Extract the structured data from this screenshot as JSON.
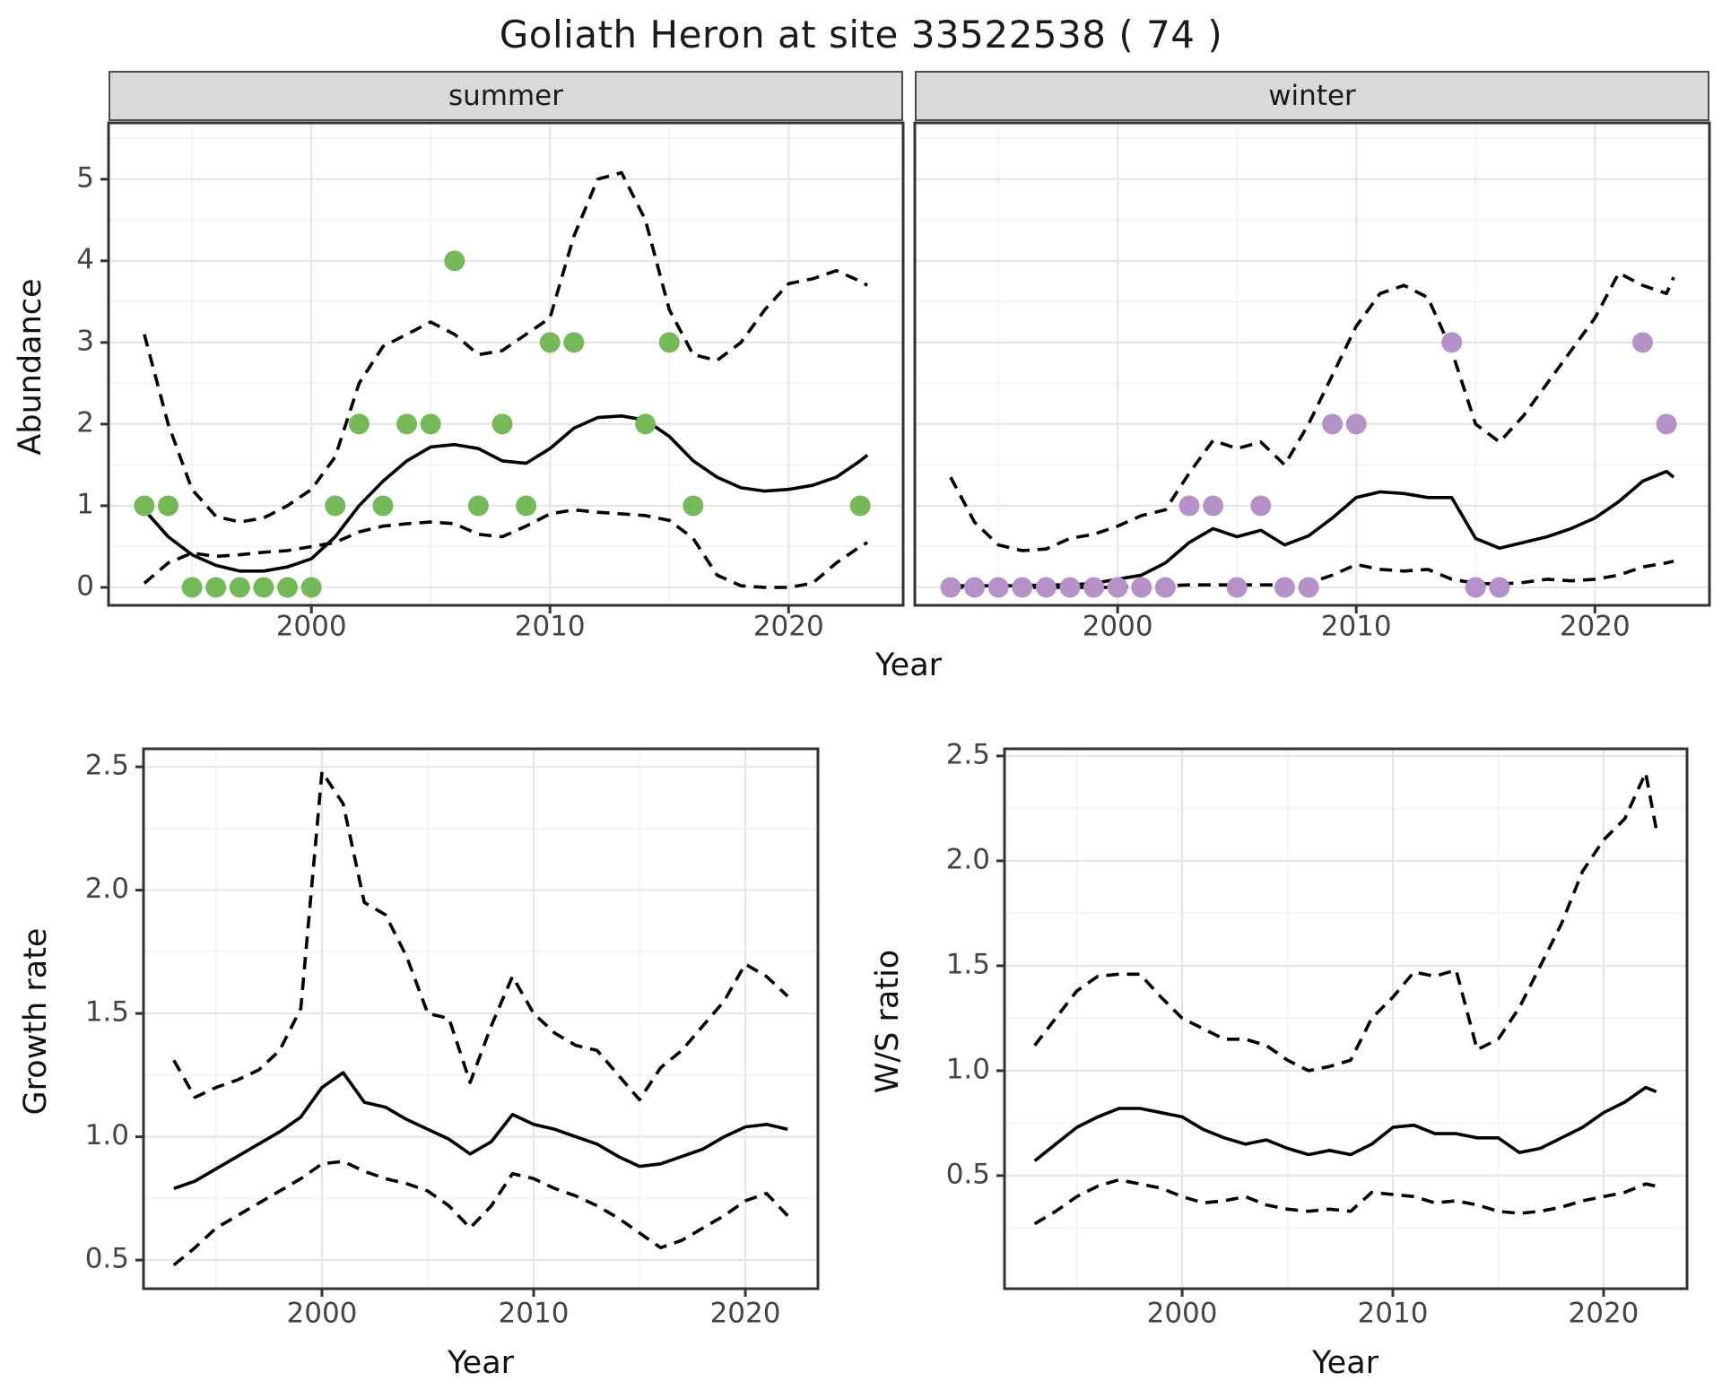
{
  "title": "Goliath Heron at site 33522538 ( 74 )",
  "facets": [
    {
      "label": "summer"
    },
    {
      "label": "winter"
    }
  ],
  "axis_titles": {
    "abundance": "Abundance",
    "year_top": "Year",
    "growth_rate": "Growth rate",
    "year_bottom_left": "Year",
    "ws_ratio": "W/S ratio",
    "year_bottom_right": "Year"
  },
  "colors": {
    "summer_points": "#76b958",
    "winter_points": "#b691c7",
    "fit_line": "#000000",
    "ci_line": "#000000",
    "panel_border": "#333333",
    "strip_bg": "#d9d9d9",
    "grid_major": "#e6e6e6",
    "grid_minor": "#f2f2f2",
    "tick_text": "#444444",
    "background": "#ffffff"
  },
  "chart_data": [
    {
      "type": "scatter",
      "title": "summer",
      "ylabel": "Abundance",
      "xlabel": "Year",
      "xbreaks": [
        2000,
        2010,
        2020
      ],
      "xbreak_labels": [
        "2000",
        "2010",
        "2020"
      ],
      "ybreaks": [
        0,
        1,
        2,
        3,
        4,
        5
      ],
      "ybreak_labels": [
        "0",
        "1",
        "2",
        "3",
        "4",
        "5"
      ],
      "xlim": [
        1991.5,
        2024.8
      ],
      "ylim": [
        -0.22,
        5.69
      ],
      "grid": true,
      "points": [
        [
          1993,
          1
        ],
        [
          1994,
          1
        ],
        [
          1995,
          0
        ],
        [
          1996,
          0
        ],
        [
          1997,
          0
        ],
        [
          1998,
          0
        ],
        [
          1999,
          0
        ],
        [
          2000,
          0
        ],
        [
          2001,
          1
        ],
        [
          2002,
          2
        ],
        [
          2003,
          1
        ],
        [
          2004,
          2
        ],
        [
          2005,
          2
        ],
        [
          2006,
          4
        ],
        [
          2007,
          1
        ],
        [
          2008,
          2
        ],
        [
          2009,
          1
        ],
        [
          2010,
          3
        ],
        [
          2011,
          3
        ],
        [
          2014,
          2
        ],
        [
          2015,
          3
        ],
        [
          2016,
          1
        ],
        [
          2023,
          1
        ]
      ],
      "x": [
        1993,
        1994,
        1995,
        1996,
        1997,
        1998,
        1999,
        2000,
        2001,
        2002,
        2003,
        2004,
        2005,
        2006,
        2007,
        2008,
        2009,
        2010,
        2011,
        2012,
        2013,
        2014,
        2015,
        2016,
        2017,
        2018,
        2019,
        2020,
        2021,
        2022,
        2023,
        2023.3
      ],
      "series": [
        {
          "name": "fit",
          "style": "solid",
          "values": [
            0.95,
            0.62,
            0.4,
            0.27,
            0.2,
            0.2,
            0.25,
            0.35,
            0.62,
            1.0,
            1.3,
            1.55,
            1.72,
            1.75,
            1.7,
            1.55,
            1.52,
            1.7,
            1.95,
            2.08,
            2.1,
            2.05,
            1.85,
            1.55,
            1.35,
            1.22,
            1.18,
            1.2,
            1.25,
            1.35,
            1.55,
            1.62
          ]
        },
        {
          "name": "upper_ci",
          "style": "dashed",
          "values": [
            3.1,
            2.0,
            1.2,
            0.87,
            0.8,
            0.85,
            1.0,
            1.2,
            1.6,
            2.5,
            2.95,
            3.1,
            3.25,
            3.1,
            2.85,
            2.9,
            3.1,
            3.3,
            4.3,
            5.0,
            5.08,
            4.5,
            3.4,
            2.85,
            2.78,
            3.0,
            3.4,
            3.72,
            3.78,
            3.88,
            3.75,
            3.7
          ]
        },
        {
          "name": "lower_ci",
          "style": "dashed",
          "values": [
            0.05,
            0.3,
            0.42,
            0.38,
            0.4,
            0.43,
            0.45,
            0.5,
            0.55,
            0.68,
            0.75,
            0.78,
            0.8,
            0.78,
            0.65,
            0.62,
            0.75,
            0.9,
            0.95,
            0.92,
            0.9,
            0.88,
            0.82,
            0.6,
            0.15,
            0.02,
            0.0,
            0.0,
            0.05,
            0.3,
            0.5,
            0.55
          ]
        }
      ]
    },
    {
      "type": "scatter",
      "title": "winter",
      "ylabel": "Abundance",
      "xlabel": "Year",
      "xbreaks": [
        2000,
        2010,
        2020
      ],
      "xbreak_labels": [
        "2000",
        "2010",
        "2020"
      ],
      "ybreaks": [
        0,
        1,
        2,
        3,
        4,
        5
      ],
      "ybreak_labels": [
        "0",
        "1",
        "2",
        "3",
        "4",
        "5"
      ],
      "xlim": [
        1991.5,
        2024.8
      ],
      "ylim": [
        -0.22,
        5.69
      ],
      "grid": true,
      "points": [
        [
          1993,
          0
        ],
        [
          1994,
          0
        ],
        [
          1995,
          0
        ],
        [
          1996,
          0
        ],
        [
          1997,
          0
        ],
        [
          1998,
          0
        ],
        [
          1999,
          0
        ],
        [
          2000,
          0
        ],
        [
          2001,
          0
        ],
        [
          2002,
          0
        ],
        [
          2003,
          1
        ],
        [
          2004,
          1
        ],
        [
          2005,
          0
        ],
        [
          2006,
          1
        ],
        [
          2007,
          0
        ],
        [
          2008,
          0
        ],
        [
          2009,
          2
        ],
        [
          2010,
          2
        ],
        [
          2014,
          3
        ],
        [
          2015,
          0
        ],
        [
          2016,
          0
        ],
        [
          2022,
          3
        ],
        [
          2023,
          2
        ]
      ],
      "x": [
        1993,
        1994,
        1995,
        1996,
        1997,
        1998,
        1999,
        2000,
        2001,
        2002,
        2003,
        2004,
        2005,
        2006,
        2007,
        2008,
        2009,
        2010,
        2011,
        2012,
        2013,
        2014,
        2015,
        2016,
        2017,
        2018,
        2019,
        2020,
        2021,
        2022,
        2023,
        2023.3
      ],
      "series": [
        {
          "name": "fit",
          "style": "solid",
          "values": [
            0.02,
            0.02,
            0.02,
            0.02,
            0.03,
            0.03,
            0.05,
            0.1,
            0.15,
            0.3,
            0.55,
            0.72,
            0.62,
            0.7,
            0.52,
            0.63,
            0.85,
            1.1,
            1.17,
            1.15,
            1.1,
            1.1,
            0.6,
            0.48,
            0.55,
            0.62,
            0.72,
            0.85,
            1.05,
            1.3,
            1.42,
            1.35
          ]
        },
        {
          "name": "upper_ci",
          "style": "dashed",
          "values": [
            1.35,
            0.8,
            0.52,
            0.45,
            0.47,
            0.6,
            0.65,
            0.75,
            0.88,
            0.95,
            1.4,
            1.8,
            1.7,
            1.78,
            1.5,
            2.0,
            2.6,
            3.2,
            3.6,
            3.7,
            3.55,
            2.9,
            2.0,
            1.78,
            2.1,
            2.5,
            2.9,
            3.3,
            3.85,
            3.7,
            3.6,
            3.8
          ]
        },
        {
          "name": "lower_ci",
          "style": "dashed",
          "values": [
            0.0,
            0.0,
            0.0,
            0.0,
            0.0,
            0.0,
            0.0,
            0.0,
            0.02,
            0.02,
            0.03,
            0.03,
            0.03,
            0.03,
            0.03,
            0.05,
            0.15,
            0.28,
            0.22,
            0.2,
            0.22,
            0.1,
            0.05,
            0.04,
            0.06,
            0.1,
            0.08,
            0.1,
            0.15,
            0.25,
            0.3,
            0.32
          ]
        }
      ]
    },
    {
      "type": "line",
      "title": "Growth rate",
      "ylabel": "Growth rate",
      "xlabel": "Year",
      "xbreaks": [
        2000,
        2010,
        2020
      ],
      "xbreak_labels": [
        "2000",
        "2010",
        "2020"
      ],
      "ybreaks": [
        0.5,
        1.0,
        1.5,
        2.0,
        2.5
      ],
      "ybreak_labels": [
        "0.5",
        "1.0",
        "1.5",
        "2.0",
        "2.5"
      ],
      "xlim": [
        1991.57,
        2023.43
      ],
      "ylim": [
        0.384,
        2.573
      ],
      "grid": true,
      "points": [],
      "x": [
        1993,
        1994,
        1995,
        1996,
        1997,
        1998,
        1999,
        2000,
        2001,
        2002,
        2003,
        2004,
        2005,
        2006,
        2007,
        2008,
        2009,
        2010,
        2011,
        2012,
        2013,
        2014,
        2015,
        2016,
        2017,
        2018,
        2019,
        2020,
        2021,
        2022
      ],
      "series": [
        {
          "name": "fit",
          "style": "solid",
          "values": [
            0.79,
            0.82,
            0.87,
            0.92,
            0.97,
            1.02,
            1.08,
            1.2,
            1.26,
            1.14,
            1.12,
            1.07,
            1.03,
            0.99,
            0.93,
            0.98,
            1.09,
            1.05,
            1.03,
            1.0,
            0.97,
            0.92,
            0.88,
            0.89,
            0.92,
            0.95,
            1.0,
            1.04,
            1.05,
            1.03
          ]
        },
        {
          "name": "upper_ci",
          "style": "dashed",
          "values": [
            1.31,
            1.16,
            1.2,
            1.23,
            1.27,
            1.35,
            1.52,
            2.48,
            2.35,
            1.95,
            1.9,
            1.73,
            1.5,
            1.48,
            1.22,
            1.45,
            1.65,
            1.5,
            1.42,
            1.37,
            1.35,
            1.25,
            1.15,
            1.28,
            1.35,
            1.45,
            1.55,
            1.7,
            1.65,
            1.57
          ]
        },
        {
          "name": "lower_ci",
          "style": "dashed",
          "values": [
            0.48,
            0.55,
            0.63,
            0.68,
            0.73,
            0.78,
            0.83,
            0.89,
            0.9,
            0.86,
            0.83,
            0.81,
            0.78,
            0.72,
            0.63,
            0.72,
            0.85,
            0.83,
            0.79,
            0.76,
            0.72,
            0.67,
            0.61,
            0.55,
            0.58,
            0.63,
            0.68,
            0.74,
            0.77,
            0.68
          ]
        }
      ]
    },
    {
      "type": "line",
      "title": "W/S ratio",
      "ylabel": "W/S ratio",
      "xlabel": "Year",
      "xbreaks": [
        2000,
        2010,
        2020
      ],
      "xbreak_labels": [
        "2000",
        "2010",
        "2020"
      ],
      "ybreaks": [
        0.5,
        1.0,
        1.5,
        2.0,
        2.5
      ],
      "ybreak_labels": [
        "0.5",
        "1.0",
        "1.5",
        "2.0",
        "2.5"
      ],
      "xlim": [
        1991.57,
        2023.96
      ],
      "ylim": [
        -0.039,
        2.534
      ],
      "grid": true,
      "points": [],
      "x": [
        1993,
        1994,
        1995,
        1996,
        1997,
        1998,
        1999,
        2000,
        2001,
        2002,
        2003,
        2004,
        2005,
        2006,
        2007,
        2008,
        2009,
        2010,
        2011,
        2012,
        2013,
        2014,
        2015,
        2016,
        2017,
        2018,
        2019,
        2020,
        2021,
        2022,
        2022.5
      ],
      "series": [
        {
          "name": "fit",
          "style": "solid",
          "values": [
            0.57,
            0.65,
            0.73,
            0.78,
            0.82,
            0.82,
            0.8,
            0.78,
            0.72,
            0.68,
            0.65,
            0.67,
            0.63,
            0.6,
            0.62,
            0.6,
            0.65,
            0.73,
            0.74,
            0.7,
            0.7,
            0.68,
            0.68,
            0.61,
            0.63,
            0.68,
            0.73,
            0.8,
            0.85,
            0.92,
            0.9
          ]
        },
        {
          "name": "upper_ci",
          "style": "dashed",
          "values": [
            1.12,
            1.25,
            1.38,
            1.45,
            1.46,
            1.46,
            1.35,
            1.25,
            1.2,
            1.15,
            1.15,
            1.12,
            1.05,
            1.0,
            1.02,
            1.05,
            1.25,
            1.35,
            1.47,
            1.45,
            1.48,
            1.1,
            1.15,
            1.3,
            1.5,
            1.7,
            1.95,
            2.1,
            2.2,
            2.42,
            2.15
          ]
        },
        {
          "name": "lower_ci",
          "style": "dashed",
          "values": [
            0.27,
            0.33,
            0.4,
            0.45,
            0.48,
            0.46,
            0.44,
            0.4,
            0.37,
            0.38,
            0.4,
            0.36,
            0.34,
            0.33,
            0.34,
            0.33,
            0.42,
            0.41,
            0.4,
            0.37,
            0.38,
            0.36,
            0.33,
            0.32,
            0.33,
            0.35,
            0.38,
            0.4,
            0.42,
            0.46,
            0.45
          ]
        }
      ]
    }
  ]
}
